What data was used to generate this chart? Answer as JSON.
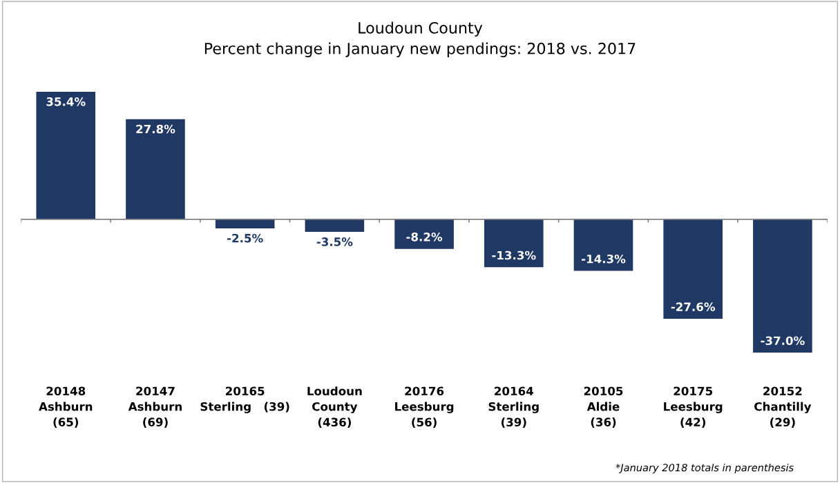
{
  "chart_data": {
    "type": "bar",
    "title": "Loudoun County\nPercent change in January new pendings: 2018 vs. 2017",
    "categories": [
      "20148\nAshburn\n(65)",
      "20147\nAshburn\n(69)",
      "20165\nSterling   (39)",
      "Loudoun\nCounty\n(436)",
      "20176\nLeesburg\n(56)",
      "20164\nSterling\n(39)",
      "20105\nAldie\n(36)",
      "20175\nLeesburg\n(42)",
      "20152\nChantilly\n(29)"
    ],
    "values": [
      35.4,
      27.8,
      -2.5,
      -3.5,
      -8.2,
      -13.3,
      -14.3,
      -27.6,
      -37.0
    ],
    "value_labels": [
      "35.4%",
      "27.8%",
      "-2.5%",
      "-3.5%",
      "-8.2%",
      "-13.3%",
      "-14.3%",
      "-27.6%",
      "-37.0%"
    ],
    "color": "#1f3864",
    "annotations": [
      "*January 2018 totals in parenthesis"
    ]
  }
}
